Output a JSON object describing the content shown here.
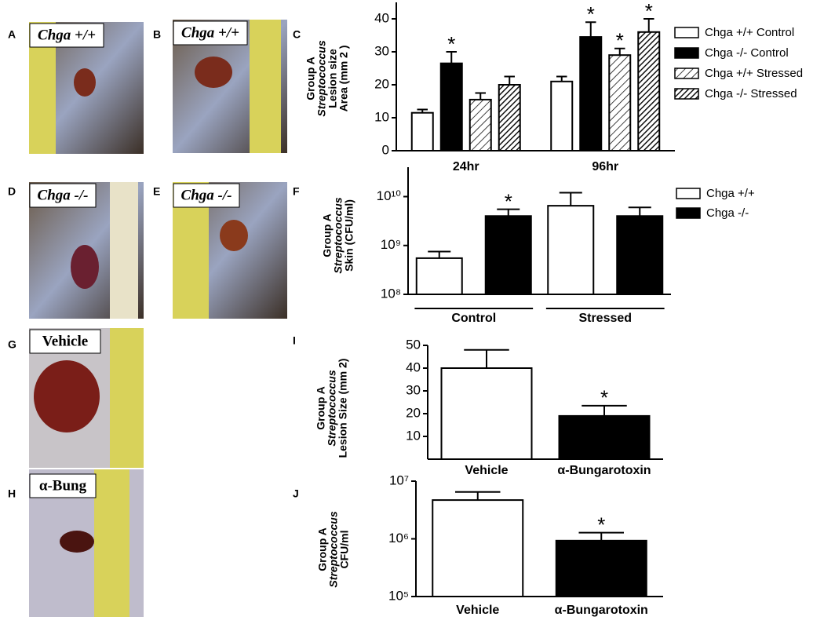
{
  "photos": [
    {
      "letter": "A",
      "label": "Chga +/+"
    },
    {
      "letter": "B",
      "label": "Chga +/+"
    },
    {
      "letter": "D",
      "label": "Chga -/-"
    },
    {
      "letter": "E",
      "label": "Chga -/-"
    },
    {
      "letter": "G",
      "label": "Vehicle"
    },
    {
      "letter": "H",
      "label": "α-Bung"
    }
  ],
  "chart_data": [
    {
      "type": "bar",
      "panel": "C",
      "ylabel": [
        "Group A",
        "Streptococcus",
        "Lesion size",
        "Area (mm 2 )"
      ],
      "categories": [
        "24hr",
        "96hr"
      ],
      "ylim": [
        0,
        45
      ],
      "yticks": [
        0,
        10,
        20,
        30,
        40
      ],
      "legend": "right",
      "series": [
        {
          "name": "Chga +/+ Control",
          "color": "#ffffff",
          "values": [
            11.5,
            21
          ],
          "errors": [
            1,
            1.5
          ],
          "significance": [
            null,
            null
          ]
        },
        {
          "name": "Chga -/- Control",
          "color": "#000000",
          "values": [
            26.5,
            34.5
          ],
          "errors": [
            3.5,
            4.5
          ],
          "significance": [
            "*",
            "*"
          ]
        },
        {
          "name": "Chga +/+ Stressed",
          "color": "#ffffff",
          "hatch": "sparse",
          "values": [
            15.5,
            29
          ],
          "errors": [
            2,
            2
          ],
          "significance": [
            null,
            "*"
          ]
        },
        {
          "name": "Chga -/- Stressed",
          "color": "#000000",
          "hatch": "dense",
          "values": [
            20,
            36
          ],
          "errors": [
            2.5,
            4
          ],
          "significance": [
            null,
            "*"
          ]
        }
      ]
    },
    {
      "type": "bar",
      "panel": "F",
      "ylabel": [
        "Group A",
        "Streptococcus",
        "Skin (CFU/ml)"
      ],
      "categories": [
        "Control",
        "Stressed"
      ],
      "log": true,
      "ylim": [
        100000000.0,
        40000000000.0
      ],
      "legend": "right",
      "yticks": [
        {
          "value": 100000000.0,
          "label": "10⁸"
        },
        {
          "value": 1000000000.0,
          "label": "10⁹"
        },
        {
          "value": 10000000000.0,
          "label": "10¹⁰"
        }
      ],
      "series": [
        {
          "name": "Chga +/+",
          "color": "#ffffff",
          "values": [
            550000000.0,
            6500000000.0
          ],
          "errors": [
            200000000.0,
            5500000000.0
          ],
          "significance": [
            null,
            null
          ]
        },
        {
          "name": "Chga -/-",
          "color": "#000000",
          "values": [
            4000000000.0,
            4000000000.0
          ],
          "errors": [
            1500000000.0,
            2000000000.0
          ],
          "significance": [
            "*",
            null
          ]
        }
      ]
    },
    {
      "type": "bar",
      "panel": "I",
      "ylabel": [
        "Group  A",
        "Streptococcus",
        "Lesion  Size (mm 2)"
      ],
      "categories": [
        "Vehicle",
        "α-Bungarotoxin"
      ],
      "ylim": [
        0,
        50
      ],
      "yticks": [
        10,
        20,
        30,
        40,
        50
      ],
      "colors": [
        "#ffffff",
        "#000000"
      ],
      "values": [
        40,
        19
      ],
      "errors": [
        8,
        4.5
      ],
      "significance": [
        null,
        "*"
      ]
    },
    {
      "type": "bar",
      "panel": "J",
      "ylabel": [
        "Group  A",
        "Streptococcus",
        "CFU/ml"
      ],
      "categories": [
        "Vehicle",
        "α-Bungarotoxin"
      ],
      "log": true,
      "ylim": [
        100000.0,
        10000000.0
      ],
      "yticks": [
        {
          "value": 100000.0,
          "label": "10⁵"
        },
        {
          "value": 1000000.0,
          "label": "10⁶"
        },
        {
          "value": 10000000.0,
          "label": "10⁷"
        }
      ],
      "colors": [
        "#ffffff",
        "#000000"
      ],
      "values": [
        4700000.0,
        930000.0
      ],
      "errors": [
        1800000.0,
        350000.0
      ],
      "significance": [
        null,
        "*"
      ]
    }
  ]
}
